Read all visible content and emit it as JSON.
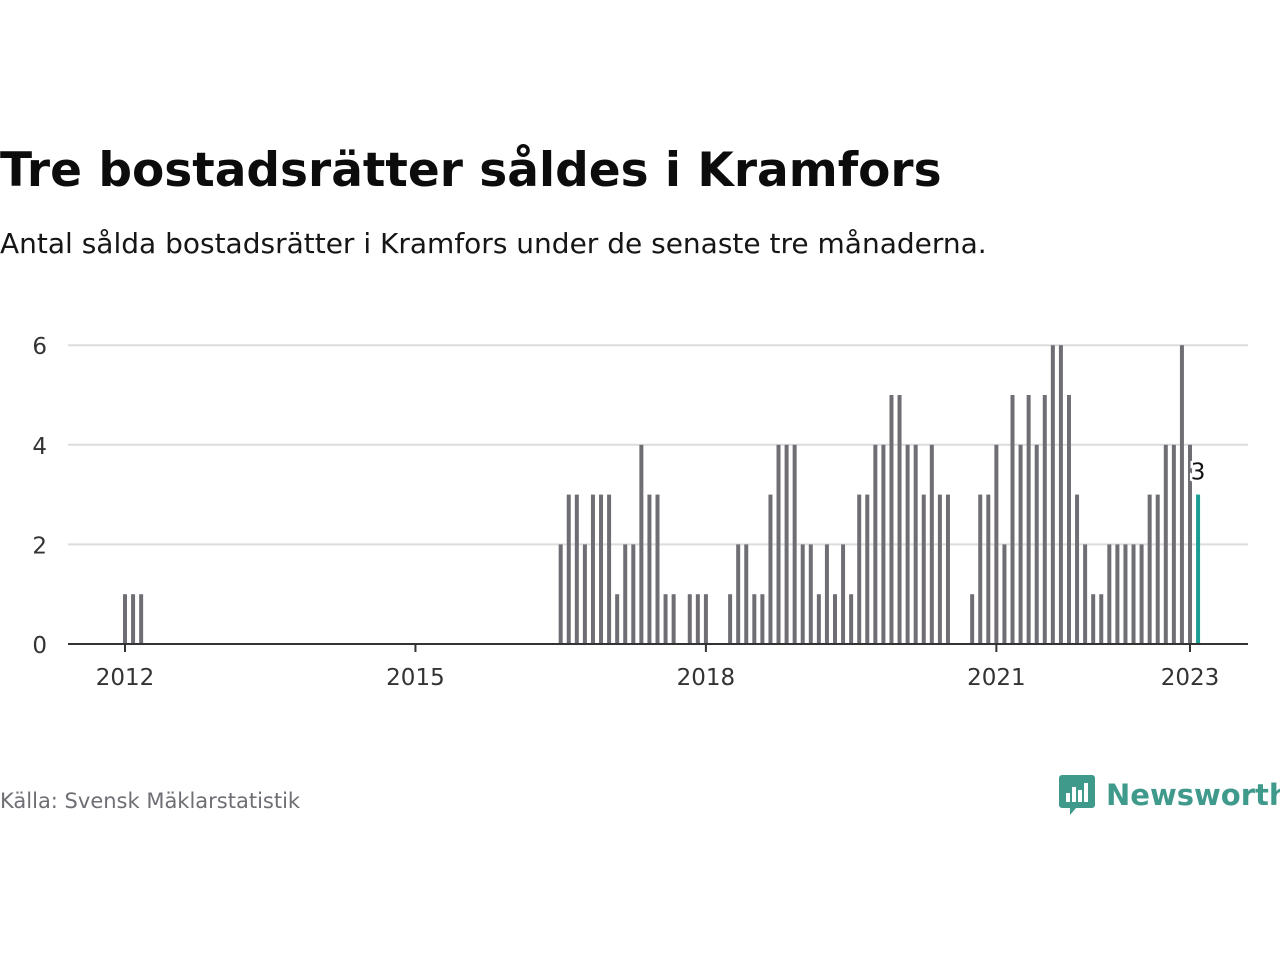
{
  "title": "Tre bostadsrätter såldes i Kramfors",
  "subtitle": "Antal sålda bostadsrätter i Kramfors under de senaste tre månaderna.",
  "source": "Källa: Svensk Mäklarstatistik",
  "brand": {
    "name": "Newsworthy",
    "icon": "newsworthy-logo-icon",
    "color": "#3f9a8c"
  },
  "chart_data": {
    "type": "bar",
    "ylim": [
      0,
      6.5
    ],
    "y_ticks": [
      "0",
      "2",
      "4",
      "6"
    ],
    "x_ticks": [
      "2012",
      "2015",
      "2018",
      "2021",
      "2023"
    ],
    "bar_color": "#6e6e75",
    "highlight_color": "#1a9e95",
    "highlight_label": "3",
    "grid": true,
    "points": [
      {
        "d": "2012-01",
        "v": 1
      },
      {
        "d": "2012-02",
        "v": 1
      },
      {
        "d": "2012-03",
        "v": 1
      },
      {
        "d": "2016-07",
        "v": 2
      },
      {
        "d": "2016-08",
        "v": 3
      },
      {
        "d": "2016-09",
        "v": 3
      },
      {
        "d": "2016-10",
        "v": 2
      },
      {
        "d": "2016-11",
        "v": 3
      },
      {
        "d": "2016-12",
        "v": 3
      },
      {
        "d": "2017-01",
        "v": 3
      },
      {
        "d": "2017-02",
        "v": 1
      },
      {
        "d": "2017-03",
        "v": 2
      },
      {
        "d": "2017-04",
        "v": 2
      },
      {
        "d": "2017-05",
        "v": 4
      },
      {
        "d": "2017-06",
        "v": 3
      },
      {
        "d": "2017-07",
        "v": 3
      },
      {
        "d": "2017-08",
        "v": 1
      },
      {
        "d": "2017-09",
        "v": 1
      },
      {
        "d": "2017-11",
        "v": 1
      },
      {
        "d": "2017-12",
        "v": 1
      },
      {
        "d": "2018-01",
        "v": 1
      },
      {
        "d": "2018-04",
        "v": 1
      },
      {
        "d": "2018-05",
        "v": 2
      },
      {
        "d": "2018-06",
        "v": 2
      },
      {
        "d": "2018-07",
        "v": 1
      },
      {
        "d": "2018-08",
        "v": 1
      },
      {
        "d": "2018-09",
        "v": 3
      },
      {
        "d": "2018-10",
        "v": 4
      },
      {
        "d": "2018-11",
        "v": 4
      },
      {
        "d": "2018-12",
        "v": 4
      },
      {
        "d": "2019-01",
        "v": 2
      },
      {
        "d": "2019-02",
        "v": 2
      },
      {
        "d": "2019-03",
        "v": 1
      },
      {
        "d": "2019-04",
        "v": 2
      },
      {
        "d": "2019-05",
        "v": 1
      },
      {
        "d": "2019-06",
        "v": 2
      },
      {
        "d": "2019-07",
        "v": 1
      },
      {
        "d": "2019-08",
        "v": 3
      },
      {
        "d": "2019-09",
        "v": 3
      },
      {
        "d": "2019-10",
        "v": 4
      },
      {
        "d": "2019-11",
        "v": 4
      },
      {
        "d": "2019-12",
        "v": 5
      },
      {
        "d": "2020-01",
        "v": 5
      },
      {
        "d": "2020-02",
        "v": 4
      },
      {
        "d": "2020-03",
        "v": 4
      },
      {
        "d": "2020-04",
        "v": 3
      },
      {
        "d": "2020-05",
        "v": 4
      },
      {
        "d": "2020-06",
        "v": 3
      },
      {
        "d": "2020-07",
        "v": 3
      },
      {
        "d": "2020-10",
        "v": 1
      },
      {
        "d": "2020-11",
        "v": 3
      },
      {
        "d": "2020-12",
        "v": 3
      },
      {
        "d": "2021-01",
        "v": 4
      },
      {
        "d": "2021-02",
        "v": 2
      },
      {
        "d": "2021-03",
        "v": 5
      },
      {
        "d": "2021-04",
        "v": 4
      },
      {
        "d": "2021-05",
        "v": 5
      },
      {
        "d": "2021-06",
        "v": 4
      },
      {
        "d": "2021-07",
        "v": 5
      },
      {
        "d": "2021-08",
        "v": 6
      },
      {
        "d": "2021-09",
        "v": 6
      },
      {
        "d": "2021-10",
        "v": 5
      },
      {
        "d": "2021-11",
        "v": 3
      },
      {
        "d": "2021-12",
        "v": 2
      },
      {
        "d": "2022-01",
        "v": 1
      },
      {
        "d": "2022-02",
        "v": 1
      },
      {
        "d": "2022-03",
        "v": 2
      },
      {
        "d": "2022-04",
        "v": 2
      },
      {
        "d": "2022-05",
        "v": 2
      },
      {
        "d": "2022-06",
        "v": 2
      },
      {
        "d": "2022-07",
        "v": 2
      },
      {
        "d": "2022-08",
        "v": 3
      },
      {
        "d": "2022-09",
        "v": 3
      },
      {
        "d": "2022-10",
        "v": 4
      },
      {
        "d": "2022-11",
        "v": 4
      },
      {
        "d": "2022-12",
        "v": 6
      },
      {
        "d": "2023-01",
        "v": 4
      },
      {
        "d": "2023-02",
        "v": 3
      }
    ]
  }
}
